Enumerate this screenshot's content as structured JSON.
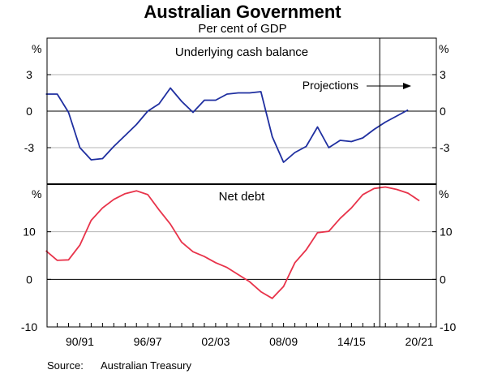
{
  "chart_data": {
    "type": "line",
    "title": "Australian Government",
    "subtitle": "Per cent of GDP",
    "source_label": "Source:",
    "source_text": "Australian Treasury",
    "x_tick_labels": [
      "90/91",
      "96/97",
      "02/03",
      "08/09",
      "14/15",
      "20/21"
    ],
    "x_tick_positions": [
      1990,
      1996,
      2002,
      2008,
      2014,
      2020
    ],
    "xlim": [
      1987.1,
      2021.5
    ],
    "projection_start": 2016.5,
    "colors": {
      "cash": "#1f2fa0",
      "debt": "#e8334a"
    },
    "panels": [
      {
        "id": "cash",
        "title": "Underlying cash balance",
        "unit": "%",
        "ylim": [
          -6,
          6
        ],
        "yticks": [
          3,
          0,
          -3
        ],
        "grid": true,
        "annotation": "Projections",
        "series": {
          "x": [
            1987,
            1988,
            1989,
            1990,
            1991,
            1992,
            1993,
            1994,
            1995,
            1996,
            1997,
            1998,
            1999,
            2000,
            2001,
            2002,
            2003,
            2004,
            2005,
            2006,
            2007,
            2008,
            2009,
            2010,
            2011,
            2012,
            2013,
            2014,
            2015,
            2016,
            2017,
            2018,
            2019,
            2020
          ],
          "values": [
            1.4,
            1.4,
            -0.1,
            -3.0,
            -4.0,
            -3.9,
            -2.9,
            -2.0,
            -1.1,
            0.0,
            0.6,
            1.9,
            0.8,
            -0.1,
            0.9,
            0.9,
            1.4,
            1.5,
            1.5,
            1.6,
            -2.1,
            -4.2,
            -3.4,
            -2.9,
            -1.3,
            -3.0,
            -2.4,
            -2.5,
            -2.2,
            -1.5,
            -0.9,
            -0.4,
            0.1,
            null
          ]
        }
      },
      {
        "id": "debt",
        "title": "Net debt",
        "unit": "%",
        "ylim": [
          -10,
          20
        ],
        "yticks": [
          10,
          0,
          -10
        ],
        "grid": true,
        "series": {
          "x": [
            1987,
            1988,
            1989,
            1990,
            1991,
            1992,
            1993,
            1994,
            1995,
            1996,
            1997,
            1998,
            1999,
            2000,
            2001,
            2002,
            2003,
            2004,
            2005,
            2006,
            2007,
            2008,
            2009,
            2010,
            2011,
            2012,
            2013,
            2014,
            2015,
            2016,
            2017,
            2018,
            2019,
            2020
          ],
          "values": [
            6.0,
            4.0,
            4.1,
            7.2,
            12.4,
            15.0,
            16.8,
            18.0,
            18.6,
            17.8,
            14.6,
            11.6,
            7.8,
            5.8,
            4.8,
            3.5,
            2.5,
            1.0,
            -0.5,
            -2.6,
            -4.0,
            -1.5,
            3.5,
            6.2,
            9.8,
            10.1,
            12.8,
            15.0,
            17.8,
            19.1,
            19.4,
            18.9,
            18.1,
            16.5
          ]
        }
      }
    ]
  }
}
